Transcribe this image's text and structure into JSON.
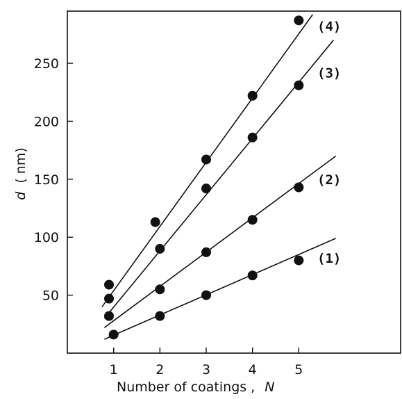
{
  "chart_data": {
    "type": "scatter",
    "title": "",
    "xlabel": "Number of coatings ,",
    "xlabel_symbol": "N",
    "ylabel": "d",
    "ylabel_unit": "( nm)",
    "xlim": [
      0,
      7.2
    ],
    "ylim": [
      0,
      295
    ],
    "x_ticks": [
      1,
      2,
      3,
      4,
      5
    ],
    "y_ticks": [
      50,
      100,
      150,
      200,
      250
    ],
    "grid": false,
    "legend": "none",
    "series": [
      {
        "name": "(1)",
        "x": [
          1,
          2,
          3,
          4,
          5
        ],
        "y": [
          16,
          32,
          50,
          67,
          80
        ],
        "fit_line": {
          "x": [
            0.8,
            5.8
          ],
          "y": [
            12,
            99
          ]
        },
        "label_anchor": [
          5.4,
          82
        ]
      },
      {
        "name": "(2)",
        "x": [
          0.9,
          2,
          3,
          4,
          5
        ],
        "y": [
          32,
          55,
          87,
          115,
          143
        ],
        "fit_line": {
          "x": [
            0.8,
            5.8
          ],
          "y": [
            22,
            170
          ]
        },
        "label_anchor": [
          5.4,
          150
        ]
      },
      {
        "name": "(3)",
        "x": [
          0.9,
          2,
          3,
          4,
          5
        ],
        "y": [
          47,
          90,
          142,
          186,
          231
        ],
        "fit_line": {
          "x": [
            0.8,
            5.75
          ],
          "y": [
            30,
            270
          ]
        },
        "label_anchor": [
          5.4,
          242
        ]
      },
      {
        "name": "(4)",
        "x": [
          0.9,
          1.9,
          3,
          4,
          5
        ],
        "y": [
          59,
          113,
          167,
          222,
          287
        ],
        "fit_line": {
          "x": [
            0.75,
            5.3
          ],
          "y": [
            40,
            292
          ]
        },
        "label_anchor": [
          5.4,
          282
        ]
      }
    ]
  }
}
